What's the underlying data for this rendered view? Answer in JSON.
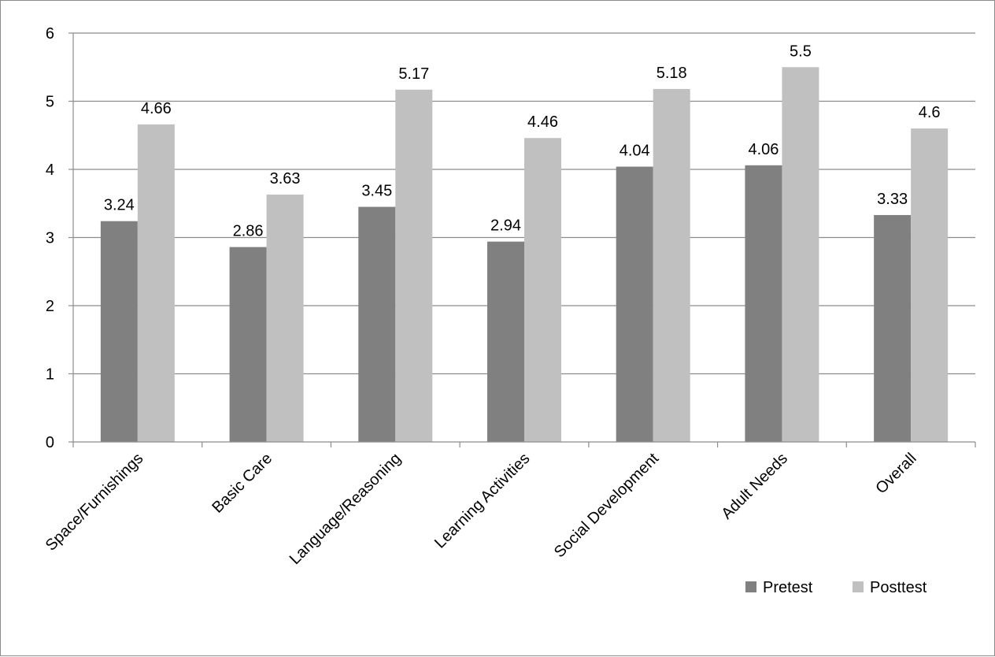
{
  "chart_data": {
    "type": "bar",
    "title": "",
    "xlabel": "",
    "ylabel": "",
    "categories": [
      "Space/Furnishings",
      "Basic Care",
      "Language/Reasoning",
      "Learning Activities",
      "Social Development",
      "Adult Needs",
      "Overall"
    ],
    "series": [
      {
        "name": "Pretest",
        "color": "#808080",
        "values": [
          3.24,
          2.86,
          3.45,
          2.94,
          4.04,
          4.06,
          3.33
        ],
        "labels": [
          "3.24",
          "2.86",
          "3.45",
          "2.94",
          "4.04",
          "4.06",
          "3.33"
        ]
      },
      {
        "name": "Posttest",
        "color": "#c0c0c0",
        "values": [
          4.66,
          3.63,
          5.17,
          4.46,
          5.18,
          5.5,
          4.6
        ],
        "labels": [
          "4.66",
          "3.63",
          "5.17",
          "4.46",
          "5.18",
          "5.5",
          "4.6"
        ]
      }
    ],
    "ylim": [
      0,
      6
    ],
    "yticks": [
      "0",
      "1",
      "2",
      "3",
      "4",
      "5",
      "6"
    ],
    "grid": true,
    "legend": "bottom-right"
  }
}
